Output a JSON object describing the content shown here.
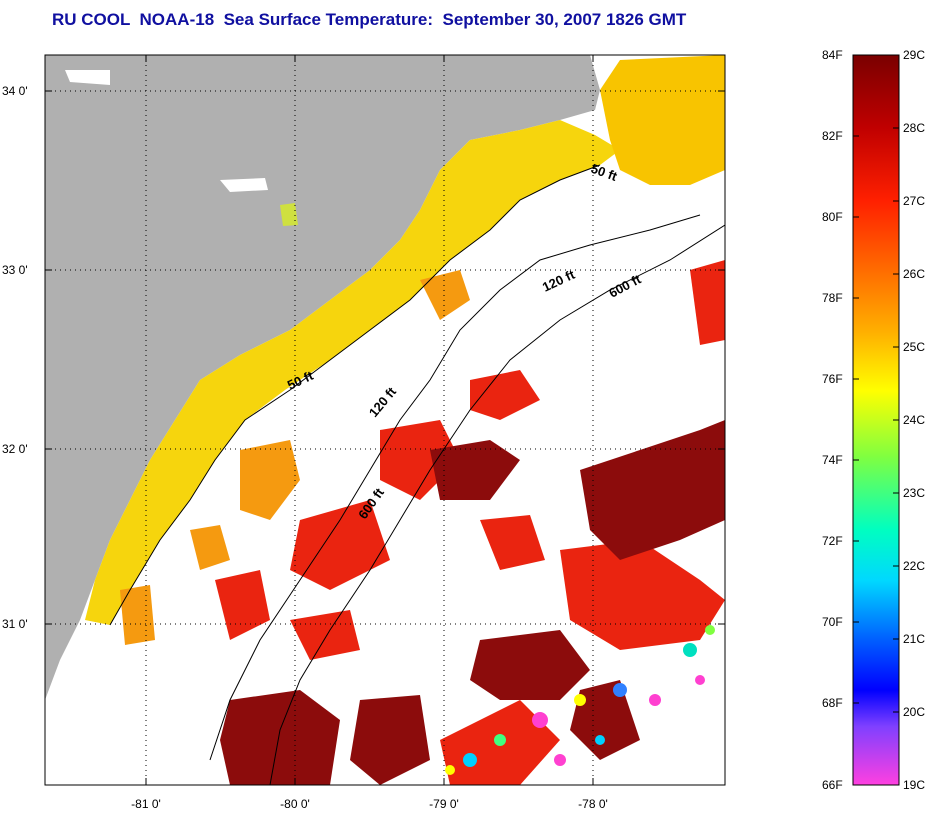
{
  "title": "RU COOL  NOAA-18  Sea Surface Temperature:  September 30, 2007 1826 GMT",
  "map": {
    "lat_labels": [
      "34 0'",
      "33 0'",
      "32 0'",
      "31 0'"
    ],
    "lon_labels": [
      "-81 0'",
      "-80 0'",
      "-79 0'",
      "-78 0'"
    ],
    "contour_labels": [
      "50 ft",
      "50 ft",
      "120 ft",
      "120 ft",
      "600 ft",
      "600 ft"
    ],
    "colors": {
      "land": "#b0b0b0",
      "water_no_data": "#ffffff",
      "coastal_yellow": "#f8d800",
      "orange": "#f89000",
      "red": "#e82010",
      "dark_red": "#8a0808"
    }
  },
  "colorbar": {
    "fahrenheit_labels": [
      "84F",
      "82F",
      "80F",
      "78F",
      "76F",
      "74F",
      "72F",
      "70F",
      "68F",
      "66F"
    ],
    "celsius_labels": [
      "29C",
      "28C",
      "27C",
      "26C",
      "25C",
      "24C",
      "23C",
      "22C",
      "21C",
      "20C",
      "19C"
    ],
    "gradient_colors": [
      "#7a0000",
      "#c00000",
      "#ff2000",
      "#ff7000",
      "#ffb000",
      "#ffff00",
      "#80ff40",
      "#00ffc0",
      "#00d8ff",
      "#0060ff",
      "#0000ff",
      "#8040ff",
      "#ff40e0"
    ]
  }
}
